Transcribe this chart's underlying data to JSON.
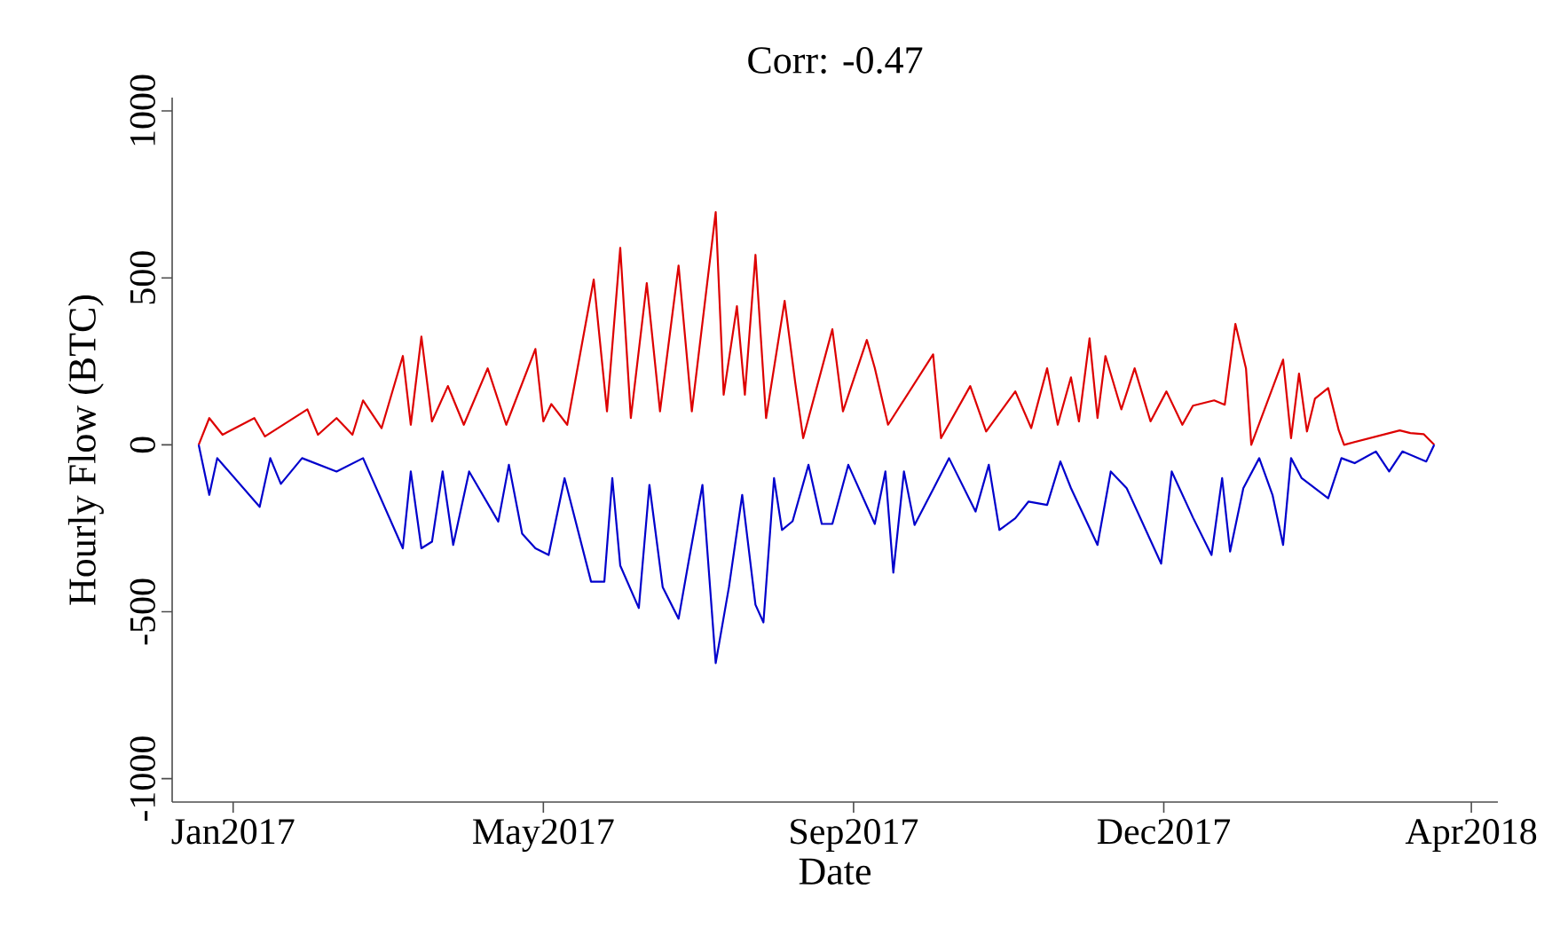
{
  "chart_data": {
    "type": "line",
    "title": "Corr: -0.47",
    "xlabel": "Date",
    "ylabel": "Hourly Flow (BTC)",
    "xlim": [
      "2016-12-19",
      "2018-05-03"
    ],
    "xticks": [
      {
        "value": "2017-01-11",
        "label": "Jan2017"
      },
      {
        "value": "2017-05-08",
        "label": "May2017"
      },
      {
        "value": "2017-09-02",
        "label": "Sep2017"
      },
      {
        "value": "2017-12-28",
        "label": "Dec2017"
      },
      {
        "value": "2018-04-23",
        "label": "Apr2018"
      }
    ],
    "ylim": [
      -1070,
      1040
    ],
    "yticks": [
      -1000,
      -500,
      0,
      500,
      1000
    ],
    "grid": false,
    "series": [
      {
        "color": "#dd0000",
        "x": [
          "2016-12-29",
          "2017-01-02",
          "2017-01-07",
          "2017-01-19",
          "2017-01-23",
          "2017-02-08",
          "2017-02-12",
          "2017-02-19",
          "2017-02-25",
          "2017-03-01",
          "2017-03-08",
          "2017-03-16",
          "2017-03-19",
          "2017-03-23",
          "2017-03-27",
          "2017-04-02",
          "2017-04-08",
          "2017-04-17",
          "2017-04-24",
          "2017-05-05",
          "2017-05-08",
          "2017-05-11",
          "2017-05-17",
          "2017-05-27",
          "2017-06-01",
          "2017-06-06",
          "2017-06-10",
          "2017-06-16",
          "2017-06-21",
          "2017-06-28",
          "2017-07-03",
          "2017-07-12",
          "2017-07-15",
          "2017-07-20",
          "2017-07-23",
          "2017-07-27",
          "2017-07-31",
          "2017-08-07",
          "2017-08-11",
          "2017-08-14",
          "2017-08-25",
          "2017-08-29",
          "2017-09-07",
          "2017-09-10",
          "2017-09-15",
          "2017-10-02",
          "2017-10-05",
          "2017-10-16",
          "2017-10-22",
          "2017-11-02",
          "2017-11-08",
          "2017-11-14",
          "2017-11-18",
          "2017-11-23",
          "2017-11-26",
          "2017-11-30",
          "2017-12-03",
          "2017-12-06",
          "2017-12-12",
          "2017-12-17",
          "2017-12-23",
          "2017-12-29",
          "2018-01-04",
          "2018-01-08",
          "2018-01-16",
          "2018-01-20",
          "2018-01-24",
          "2018-01-28",
          "2018-01-30",
          "2018-02-11",
          "2018-02-14",
          "2018-02-17",
          "2018-02-20",
          "2018-02-23",
          "2018-02-28",
          "2018-03-04",
          "2018-03-06",
          "2018-03-27",
          "2018-03-31",
          "2018-04-05",
          "2018-04-09"
        ],
        "values": [
          0,
          80,
          30,
          80,
          25,
          106,
          30,
          80,
          30,
          133,
          50,
          266,
          60,
          324,
          70,
          176,
          60,
          229,
          60,
          287,
          70,
          122,
          60,
          495,
          100,
          590,
          80,
          484,
          100,
          537,
          100,
          697,
          150,
          415,
          150,
          569,
          80,
          431,
          186,
          20,
          346,
          100,
          314,
          230,
          60,
          271,
          20,
          176,
          40,
          160,
          50,
          229,
          60,
          202,
          70,
          319,
          80,
          266,
          106,
          229,
          70,
          160,
          60,
          117,
          133,
          120,
          362,
          229,
          0,
          255,
          20,
          213,
          40,
          138,
          170,
          43,
          0,
          43,
          35,
          32,
          0
        ]
      },
      {
        "color": "#0000cc",
        "x": [
          "2016-12-29",
          "2017-01-02",
          "2017-01-05",
          "2017-01-21",
          "2017-01-25",
          "2017-01-29",
          "2017-02-06",
          "2017-02-19",
          "2017-03-01",
          "2017-03-16",
          "2017-03-19",
          "2017-03-23",
          "2017-03-27",
          "2017-03-31",
          "2017-04-04",
          "2017-04-10",
          "2017-04-21",
          "2017-04-25",
          "2017-04-30",
          "2017-05-05",
          "2017-05-10",
          "2017-05-16",
          "2017-05-26",
          "2017-05-31",
          "2017-06-03",
          "2017-06-06",
          "2017-06-13",
          "2017-06-17",
          "2017-06-22",
          "2017-06-28",
          "2017-07-02",
          "2017-07-07",
          "2017-07-12",
          "2017-07-17",
          "2017-07-22",
          "2017-07-27",
          "2017-07-30",
          "2017-08-03",
          "2017-08-06",
          "2017-08-10",
          "2017-08-16",
          "2017-08-21",
          "2017-08-25",
          "2017-08-31",
          "2017-09-10",
          "2017-09-14",
          "2017-09-17",
          "2017-09-21",
          "2017-09-25",
          "2017-10-02",
          "2017-10-08",
          "2017-10-18",
          "2017-10-23",
          "2017-10-27",
          "2017-11-02",
          "2017-11-07",
          "2017-11-14",
          "2017-11-19",
          "2017-11-23",
          "2017-12-03",
          "2017-12-08",
          "2017-12-14",
          "2017-12-27",
          "2017-12-31",
          "2018-01-08",
          "2018-01-15",
          "2018-01-19",
          "2018-01-22",
          "2018-01-27",
          "2018-02-02",
          "2018-02-07",
          "2018-02-11",
          "2018-02-14",
          "2018-02-18",
          "2018-02-28",
          "2018-03-05",
          "2018-03-10",
          "2018-03-18",
          "2018-03-23",
          "2018-03-28",
          "2018-04-06",
          "2018-04-09"
        ],
        "values": [
          0,
          -150,
          -40,
          -186,
          -40,
          -117,
          -40,
          -80,
          -40,
          -310,
          -80,
          -310,
          -290,
          -80,
          -300,
          -80,
          -230,
          -60,
          -266,
          -310,
          -330,
          -100,
          -410,
          -410,
          -100,
          -362,
          -489,
          -120,
          -426,
          -521,
          -340,
          -120,
          -654,
          -426,
          -150,
          -479,
          -532,
          -100,
          -255,
          -229,
          -60,
          -237,
          -237,
          -60,
          -237,
          -80,
          -383,
          -80,
          -240,
          -133,
          -40,
          -200,
          -60,
          -255,
          -220,
          -170,
          -180,
          -50,
          -130,
          -300,
          -80,
          -130,
          -356,
          -80,
          -218,
          -330,
          -100,
          -320,
          -130,
          -40,
          -150,
          -300,
          -40,
          -100,
          -160,
          -40,
          -55,
          -20,
          -80,
          -20,
          -50,
          0
        ]
      }
    ]
  }
}
